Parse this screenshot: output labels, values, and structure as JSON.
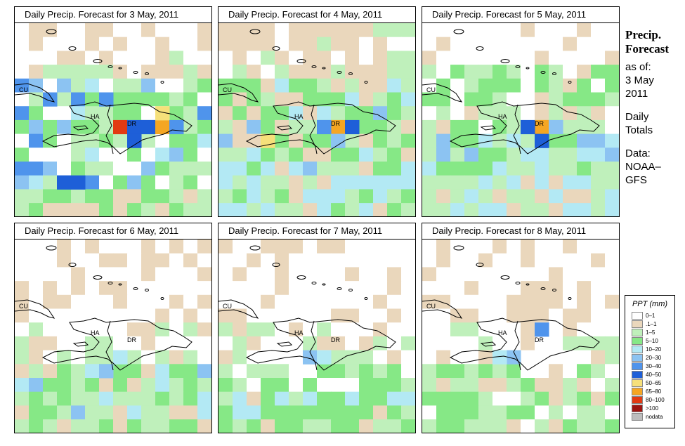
{
  "panels": [
    {
      "title": "Daily Precip. Forecast for  3 May, 2011",
      "day": 0
    },
    {
      "title": "Daily Precip. Forecast for  4 May, 2011",
      "day": 1
    },
    {
      "title": "Daily Precip. Forecast for  5 May, 2011",
      "day": 2
    },
    {
      "title": "Daily Precip. Forecast for  6 May, 2011",
      "day": 3
    },
    {
      "title": "Daily Precip. Forecast for  7 May, 2011",
      "day": 4
    },
    {
      "title": "Daily Precip. Forecast for  8 May, 2011",
      "day": 5
    }
  ],
  "map_labels": {
    "cuba": "CU",
    "haiti": "HA",
    "dominican_republic": "DR"
  },
  "sidebar": {
    "heading_line1": "Precip.",
    "heading_line2": "Forecast",
    "as_of_label": "as of:",
    "date_line1": "3 May",
    "date_line2": "2011",
    "totals_line1": "Daily",
    "totals_line2": "Totals",
    "data_line1": "Data:",
    "data_line2": "NOAA–",
    "data_line3": "GFS"
  },
  "legend": {
    "title": "PPT (mm)",
    "classes": [
      {
        "label": "0–1",
        "color": "#ffffff"
      },
      {
        "label": ".1–1",
        "color": "#ead7bc"
      },
      {
        "label": "1–5",
        "color": "#bff0bb"
      },
      {
        "label": "5–10",
        "color": "#86e886"
      },
      {
        "label": "10–20",
        "color": "#b3e9f4"
      },
      {
        "label": "20–30",
        "color": "#8cc3f2"
      },
      {
        "label": "30–40",
        "color": "#4f94ec"
      },
      {
        "label": "40–50",
        "color": "#1e5fd8"
      },
      {
        "label": "50–65",
        "color": "#f6e07a"
      },
      {
        "label": "65–80",
        "color": "#f5a623"
      },
      {
        "label": "80–100",
        "color": "#e23a12"
      },
      {
        "label": ">100",
        "color": "#9c1410"
      },
      {
        "label": "nodata",
        "color": "#bdbdbd"
      }
    ]
  }
}
